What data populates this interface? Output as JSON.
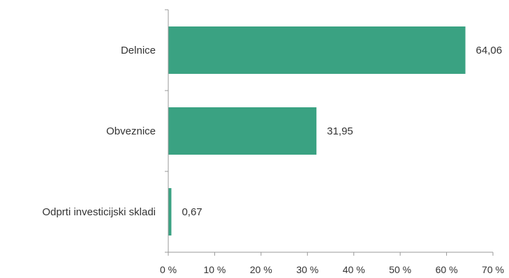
{
  "chart_data": {
    "type": "bar",
    "orientation": "horizontal",
    "title": "",
    "categories": [
      "Delnice",
      "Obveznice",
      "Odprti investicijski skladi"
    ],
    "values": [
      64.06,
      31.95,
      0.67
    ],
    "value_labels": [
      "64,06",
      "31,95",
      "0,67"
    ],
    "xlabel": "",
    "ylabel": "",
    "xlim": [
      0,
      70
    ],
    "x_ticks": [
      0,
      10,
      20,
      30,
      40,
      50,
      60,
      70
    ],
    "x_tick_labels": [
      "0 %",
      "10 %",
      "20 %",
      "30 %",
      "40 %",
      "50 %",
      "60 %",
      "70 %"
    ],
    "grid": false,
    "legend": "none",
    "bar_color": "#3aa282",
    "axis_color": "#999999"
  }
}
